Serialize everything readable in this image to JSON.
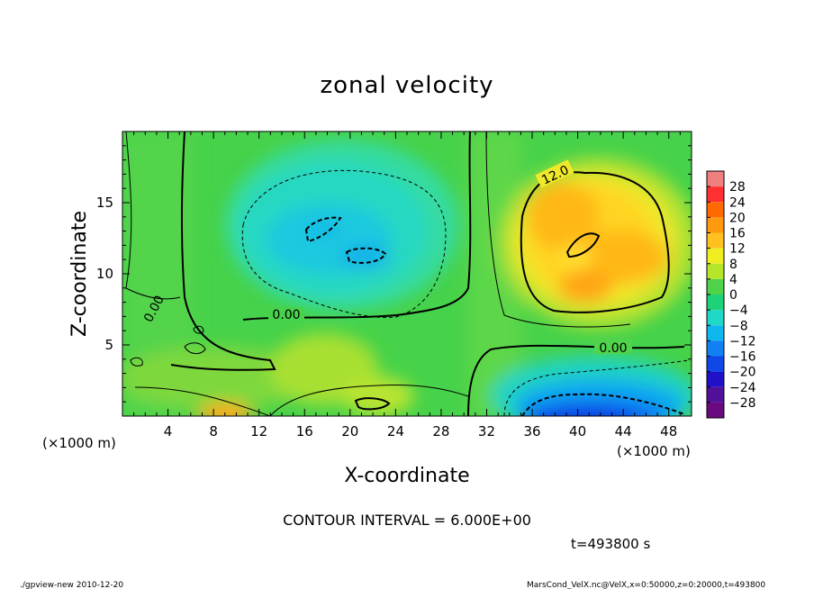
{
  "chart_data": {
    "type": "heatmap",
    "title": "zonal velocity",
    "xlabel": "X-coordinate",
    "ylabel": "Z-coordinate",
    "x_unit_left": "(×1000 m)",
    "x_unit_right": "(×1000 m)",
    "xlim": [
      0,
      50
    ],
    "ylim": [
      0,
      20
    ],
    "x_ticks": [
      4,
      8,
      12,
      16,
      20,
      24,
      28,
      32,
      36,
      40,
      44,
      48
    ],
    "y_ticks": [
      5,
      10,
      15
    ],
    "colorbar_levels": [
      28,
      24,
      20,
      16,
      12,
      8,
      4,
      0,
      -4,
      -8,
      -12,
      -16,
      -20,
      -24,
      -28
    ],
    "colorbar_colors": [
      "#f08080",
      "#ff3030",
      "#ff6a00",
      "#ff9a10",
      "#ffc020",
      "#f0ee20",
      "#b6e62a",
      "#50d24a",
      "#1ed27a",
      "#20d8c6",
      "#10b6ee",
      "#1080f2",
      "#1048e8",
      "#2010c8",
      "#50109a",
      "#6a0a80"
    ],
    "contour_labels": [
      "0.00",
      "0.00",
      "0.00",
      "12.0"
    ],
    "contour_interval": "CONTOUR INTERVAL = 6.000E+00",
    "time": "t=493800 s"
  },
  "footer": {
    "left": "./gpview-new  2010-12-20",
    "right": "MarsCond_VelX.nc@VelX,x=0:50000,z=0:20000,t=493800"
  }
}
